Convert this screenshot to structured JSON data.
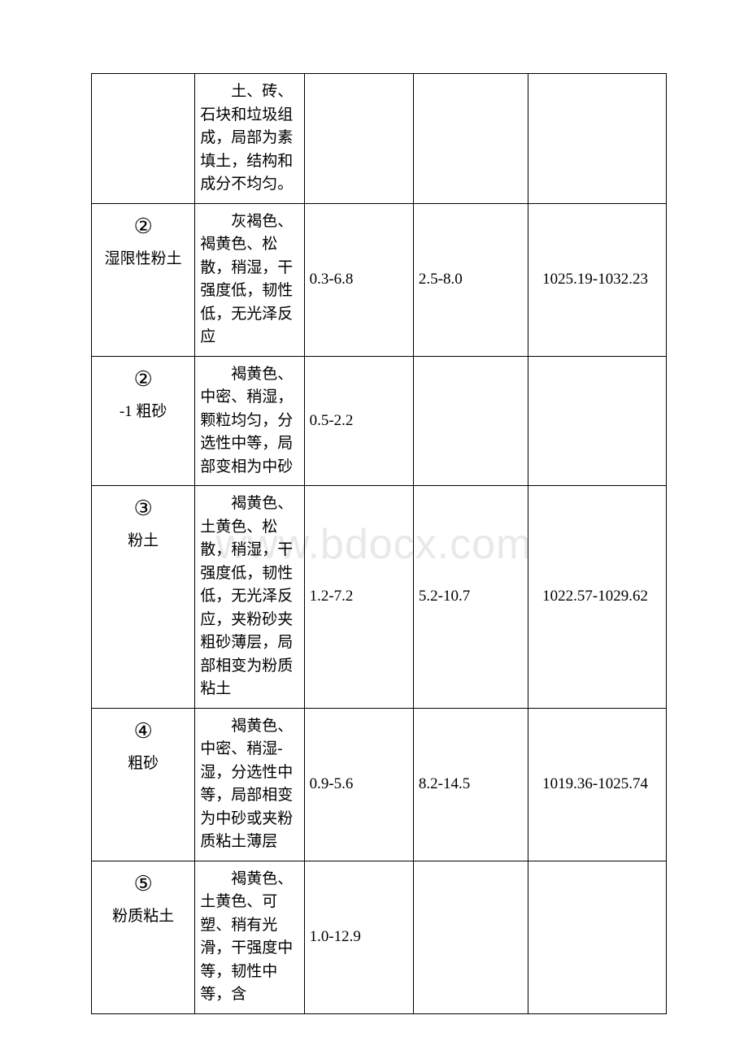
{
  "watermark": "www.bdocx.com",
  "table": {
    "columns": 5,
    "border_color": "#000000",
    "background_color": "#ffffff",
    "text_color": "#000000",
    "font_size": 19,
    "col_widths_pct": [
      18,
      19,
      19,
      20,
      24
    ],
    "rows": [
      {
        "symbol": "",
        "label": "",
        "desc": "土、砖、石块和垃圾组成，局部为素填土，结构和成分不均匀。",
        "c3": "",
        "c4": "",
        "c5": ""
      },
      {
        "symbol": "②",
        "label": "湿限性粉土",
        "desc": "灰褐色、褐黄色、松散，稍湿，干强度低，韧性低，无光泽反应",
        "c3": "0.3-6.8",
        "c4": "2.5-8.0",
        "c5": "1025.19-1032.23"
      },
      {
        "symbol": "②",
        "label": "-1 粗砂",
        "desc": "褐黄色、中密、稍湿，颗粒均匀，分选性中等，局部变相为中砂",
        "c3": "0.5-2.2",
        "c4": "",
        "c5": ""
      },
      {
        "symbol": "③",
        "label": "粉土",
        "desc": "褐黄色、土黄色、松散，稍湿，干强度低，韧性低，无光泽反应，夹粉砂夹粗砂薄层，局部相变为粉质粘土",
        "c3": "1.2-7.2",
        "c4": "5.2-10.7",
        "c5": "1022.57-1029.62"
      },
      {
        "symbol": "④",
        "label": "粗砂",
        "desc": "褐黄色、中密、稍湿-湿，分选性中等，局部相变为中砂或夹粉质粘土薄层",
        "c3": "0.9-5.6",
        "c4": "8.2-14.5",
        "c5": "1019.36-1025.74"
      },
      {
        "symbol": "⑤",
        "label": "粉质粘土",
        "desc": "褐黄色、土黄色、可塑、稍有光滑，干强度中等，韧性中等，含",
        "c3": "1.0-12.9",
        "c4": "",
        "c5": ""
      }
    ]
  }
}
